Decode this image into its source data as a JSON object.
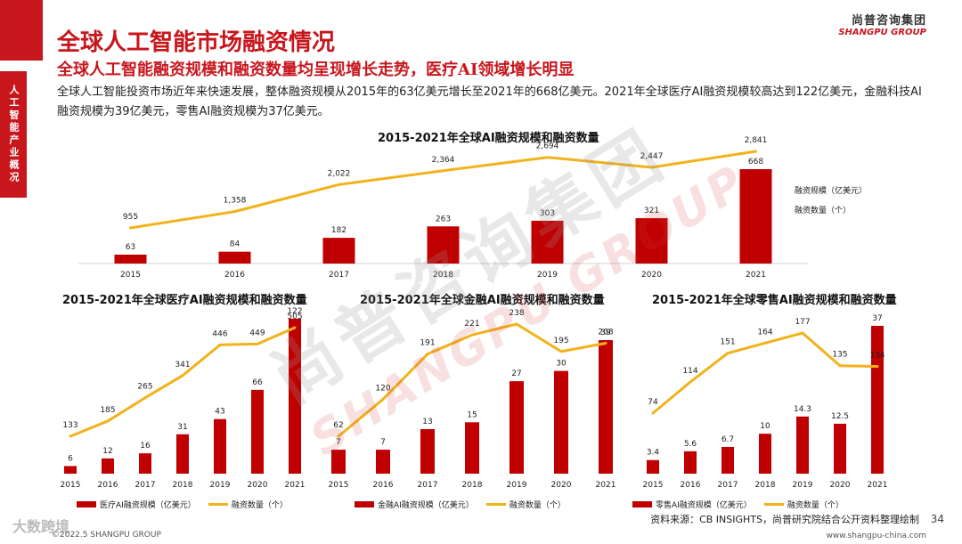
{
  "header": {
    "title": "全球人工智能市场融资情况",
    "subtitle": "全球人工智能融资规模和融资数量均呈现增长走势，医疗AI领域增长明显",
    "description": "全球人工智能投资市场近年来快速发展，整体融资规模从2015年的63亿美元增长至2021年的668亿美元。2021年全球医疗AI融资规模较高达到122亿美元，金融科技AI融资规模为39亿美元，零售AI融资规模为37亿美元。",
    "side_tab": "人工智能产业概况"
  },
  "logo": {
    "cn": "尚普咨询集团",
    "en": "SHANGPU GROUP"
  },
  "watermark": {
    "cn": "尚普咨询集团",
    "en": "SHANGPU GROUP"
  },
  "colors": {
    "brand": "#c8161d",
    "bar": "#c00000",
    "line": "#f2b21b"
  },
  "chart_data": [
    {
      "id": "main",
      "type": "bar",
      "title": "2015-2021年全球AI融资规模和融资数量",
      "categories": [
        "2015",
        "2016",
        "2017",
        "2018",
        "2019",
        "2020",
        "2021"
      ],
      "series": [
        {
          "name": "融资规模（亿美元）",
          "type": "bar",
          "values": [
            63,
            84,
            182,
            263,
            303,
            321,
            668
          ],
          "labels": [
            "63",
            "84",
            "182",
            "263",
            "303",
            "321",
            "668"
          ]
        },
        {
          "name": "融资数量（个）",
          "type": "line",
          "values": [
            955,
            1358,
            2022,
            2364,
            2694,
            2447,
            2841
          ],
          "labels": [
            "955",
            "1,358",
            "2,022",
            "2,364",
            "2,694",
            "2,447",
            "2,841"
          ]
        }
      ]
    },
    {
      "id": "medical",
      "type": "bar",
      "title": "2015-2021年全球医疗AI融资规模和融资数量",
      "categories": [
        "2015",
        "2016",
        "2017",
        "2018",
        "2019",
        "2020",
        "2021"
      ],
      "series": [
        {
          "name": "医疗AI融资规模（亿美元）",
          "type": "bar",
          "values": [
            6,
            12,
            16,
            31,
            43,
            66,
            122
          ],
          "labels": [
            "6",
            "12",
            "16",
            "31",
            "43",
            "66",
            "122"
          ]
        },
        {
          "name": "融资数量（个）",
          "type": "line",
          "values": [
            133,
            185,
            265,
            341,
            446,
            449,
            505
          ],
          "labels": [
            "133",
            "185",
            "265",
            "341",
            "446",
            "449",
            "505"
          ]
        }
      ]
    },
    {
      "id": "finance",
      "type": "bar",
      "title": "2015-2021年全球金融AI融资规模和融资数量",
      "categories": [
        "2015",
        "2016",
        "2017",
        "2018",
        "2019",
        "2020",
        "2021"
      ],
      "series": [
        {
          "name": "金融AI融资规模（亿美元）",
          "type": "bar",
          "values": [
            7,
            7,
            13,
            15,
            27,
            30,
            39
          ],
          "labels": [
            "7",
            "7",
            "13",
            "15",
            "27",
            "30",
            "39"
          ]
        },
        {
          "name": "融资数量（个）",
          "type": "line",
          "values": [
            62,
            120,
            191,
            221,
            238,
            195,
            208
          ],
          "labels": [
            "62",
            "120",
            "191",
            "221",
            "238",
            "195",
            "208"
          ]
        }
      ]
    },
    {
      "id": "retail",
      "type": "bar",
      "title": "2015-2021年全球零售AI融资规模和融资数量",
      "categories": [
        "2015",
        "2016",
        "2017",
        "2018",
        "2019",
        "2020",
        "2021"
      ],
      "series": [
        {
          "name": "零售AI融资规模（亿美元）",
          "type": "bar",
          "values": [
            3.4,
            5.6,
            6.7,
            10,
            14.3,
            12.5,
            37
          ],
          "labels": [
            "3.4",
            "5.6",
            "6.7",
            "10",
            "14.3",
            "12.5",
            "37"
          ]
        },
        {
          "name": "融资数量（个）",
          "type": "line",
          "values": [
            74,
            114,
            151,
            164,
            177,
            135,
            134
          ],
          "labels": [
            "74",
            "114",
            "151",
            "164",
            "177",
            "135",
            "134"
          ]
        }
      ]
    }
  ],
  "footer": {
    "source": "资料来源：CB INSIGHTS，尚普研究院结合公开资料整理绘制",
    "page": "34",
    "copyright": "©2022.5 SHANGPU GROUP",
    "url": "www.shangpu-china.com",
    "footlogo": "大数跨境"
  }
}
